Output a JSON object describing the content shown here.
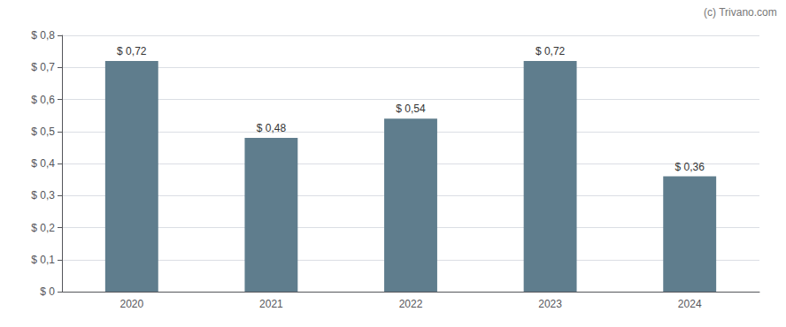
{
  "chart_data": {
    "type": "bar",
    "categories": [
      "2020",
      "2021",
      "2022",
      "2023",
      "2024"
    ],
    "values": [
      0.72,
      0.48,
      0.54,
      0.72,
      0.36
    ],
    "value_labels": [
      "$ 0,72",
      "$ 0,48",
      "$ 0,54",
      "$ 0,72",
      "$ 0,36"
    ],
    "color": "#5f7d8d",
    "ylim": [
      0,
      0.8
    ],
    "yticks": [
      {
        "value": 0.0,
        "label": "$ 0"
      },
      {
        "value": 0.1,
        "label": "$ 0,1"
      },
      {
        "value": 0.2,
        "label": "$ 0,2"
      },
      {
        "value": 0.3,
        "label": "$ 0,3"
      },
      {
        "value": 0.4,
        "label": "$ 0,4"
      },
      {
        "value": 0.5,
        "label": "$ 0,5"
      },
      {
        "value": 0.6,
        "label": "$ 0,6"
      },
      {
        "value": 0.7,
        "label": "$ 0,7"
      },
      {
        "value": 0.8,
        "label": "$ 0,8"
      }
    ],
    "grid": true,
    "data_labels": true,
    "annotations": [
      "(c) Trivano.com"
    ]
  }
}
